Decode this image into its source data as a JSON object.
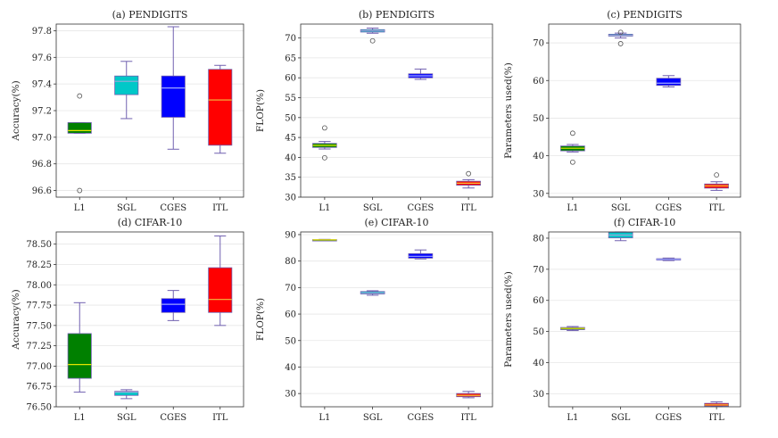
{
  "chart_data": [
    {
      "type": "box",
      "title": "(a) PENDIGITS",
      "ylabel": "Accuracy(%)",
      "ylim": [
        96.55,
        97.85
      ],
      "yticks": [
        "96.6",
        "96.8",
        "97.0",
        "97.2",
        "97.4",
        "97.6",
        "97.8"
      ],
      "categories": [
        "L1",
        "SGL",
        "CGES",
        "ITL"
      ],
      "boxes": [
        {
          "name": "L1",
          "whislo": 97.03,
          "q1": 97.03,
          "med": 97.05,
          "q3": 97.11,
          "whishi": 97.11,
          "fliers": [
            97.31,
            96.6
          ]
        },
        {
          "name": "SGL",
          "whislo": 97.14,
          "q1": 97.32,
          "med": 97.42,
          "q3": 97.46,
          "whishi": 97.57,
          "fliers": []
        },
        {
          "name": "CGES",
          "whislo": 96.91,
          "q1": 97.15,
          "med": 97.37,
          "q3": 97.46,
          "whishi": 97.83,
          "fliers": []
        },
        {
          "name": "ITL",
          "whislo": 96.88,
          "q1": 96.94,
          "med": 97.28,
          "q3": 97.51,
          "whishi": 97.54,
          "fliers": []
        }
      ]
    },
    {
      "type": "box",
      "title": "(b) PENDIGITS",
      "ylabel": "FLOP(%)",
      "ylim": [
        30,
        73.5
      ],
      "yticks": [
        "30",
        "35",
        "40",
        "45",
        "50",
        "55",
        "60",
        "65",
        "70"
      ],
      "categories": [
        "L1",
        "SGL",
        "CGES",
        "ITL"
      ],
      "boxes": [
        {
          "name": "L1",
          "whislo": 42.1,
          "q1": 42.5,
          "med": 43.0,
          "q3": 43.5,
          "whishi": 44.0,
          "fliers": [
            47.4,
            39.9
          ]
        },
        {
          "name": "SGL",
          "whislo": 71.2,
          "q1": 71.5,
          "med": 71.8,
          "q3": 72.1,
          "whishi": 72.5,
          "fliers": [
            69.3
          ]
        },
        {
          "name": "CGES",
          "whislo": 59.6,
          "q1": 60.0,
          "med": 60.5,
          "q3": 61.0,
          "whishi": 62.2,
          "fliers": []
        },
        {
          "name": "ITL",
          "whislo": 32.3,
          "q1": 33.0,
          "med": 33.5,
          "q3": 34.0,
          "whishi": 34.4,
          "fliers": [
            35.9
          ]
        }
      ]
    },
    {
      "type": "box",
      "title": "(c) PENDIGITS",
      "ylabel": "Parameters used(%)",
      "ylim": [
        29,
        75
      ],
      "yticks": [
        "30",
        "40",
        "50",
        "60",
        "70"
      ],
      "categories": [
        "L1",
        "SGL",
        "CGES",
        "ITL"
      ],
      "boxes": [
        {
          "name": "L1",
          "whislo": 41.0,
          "q1": 41.3,
          "med": 42.0,
          "q3": 42.6,
          "whishi": 43.0,
          "fliers": [
            46.0,
            38.3
          ]
        },
        {
          "name": "SGL",
          "whislo": 71.3,
          "q1": 71.8,
          "med": 72.0,
          "q3": 72.3,
          "whishi": 72.6,
          "fliers": [
            72.8,
            69.8
          ]
        },
        {
          "name": "CGES",
          "whislo": 58.3,
          "q1": 58.7,
          "med": 59.3,
          "q3": 60.6,
          "whishi": 61.3,
          "fliers": []
        },
        {
          "name": "ITL",
          "whislo": 30.8,
          "q1": 31.4,
          "med": 32.0,
          "q3": 32.5,
          "whishi": 33.1,
          "fliers": [
            34.9
          ]
        }
      ]
    },
    {
      "type": "box",
      "title": "(d) CIFAR-10",
      "ylabel": "Accuracy(%)",
      "ylim": [
        76.5,
        78.65
      ],
      "yticks": [
        "76.50",
        "76.75",
        "77.00",
        "77.25",
        "77.50",
        "77.75",
        "78.00",
        "78.25",
        "78.50"
      ],
      "categories": [
        "L1",
        "SGL",
        "CGES",
        "ITL"
      ],
      "boxes": [
        {
          "name": "L1",
          "whislo": 76.68,
          "q1": 76.85,
          "med": 77.02,
          "q3": 77.4,
          "whishi": 77.78,
          "fliers": []
        },
        {
          "name": "SGL",
          "whislo": 76.6,
          "q1": 76.64,
          "med": 76.68,
          "q3": 76.69,
          "whishi": 76.71,
          "fliers": []
        },
        {
          "name": "CGES",
          "whislo": 77.56,
          "q1": 77.66,
          "med": 77.76,
          "q3": 77.83,
          "whishi": 77.93,
          "fliers": []
        },
        {
          "name": "ITL",
          "whislo": 77.5,
          "q1": 77.66,
          "med": 77.82,
          "q3": 78.21,
          "whishi": 78.6,
          "fliers": []
        }
      ]
    },
    {
      "type": "box",
      "title": "(e) CIFAR-10",
      "ylabel": "FLOP(%)",
      "ylim": [
        25,
        91
      ],
      "yticks": [
        "30",
        "40",
        "50",
        "60",
        "70",
        "80",
        "90"
      ],
      "categories": [
        "L1",
        "SGL",
        "CGES",
        "ITL"
      ],
      "boxes": [
        {
          "name": "L1",
          "whislo": 87.8,
          "q1": 87.9,
          "med": 88.0,
          "q3": 88.1,
          "whishi": 88.2,
          "fliers": []
        },
        {
          "name": "SGL",
          "whislo": 67.1,
          "q1": 67.6,
          "med": 68.0,
          "q3": 68.5,
          "whishi": 68.8,
          "fliers": []
        },
        {
          "name": "CGES",
          "whislo": 80.8,
          "q1": 81.1,
          "med": 81.8,
          "q3": 82.8,
          "whishi": 84.2,
          "fliers": []
        },
        {
          "name": "ITL",
          "whislo": 28.4,
          "q1": 28.8,
          "med": 29.3,
          "q3": 30.0,
          "whishi": 30.8,
          "fliers": []
        }
      ]
    },
    {
      "type": "box",
      "title": "(f) CIFAR-10",
      "ylabel": "Parameters used(%)",
      "ylim": [
        25.8,
        82
      ],
      "yticks": [
        "30",
        "40",
        "50",
        "60",
        "70",
        "80"
      ],
      "categories": [
        "L1",
        "SGL",
        "CGES",
        "ITL"
      ],
      "boxes": [
        {
          "name": "L1",
          "whislo": 50.3,
          "q1": 50.6,
          "med": 51.0,
          "q3": 51.3,
          "whishi": 51.6,
          "fliers": []
        },
        {
          "name": "SGL",
          "whislo": 79.2,
          "q1": 80.1,
          "med": 81.0,
          "q3": 81.9,
          "whishi": 82.0,
          "fliers": []
        },
        {
          "name": "CGES",
          "whislo": 72.8,
          "q1": 73.0,
          "med": 73.2,
          "q3": 73.4,
          "whishi": 73.6,
          "fliers": []
        },
        {
          "name": "ITL",
          "whislo": 25.9,
          "q1": 26.0,
          "med": 26.4,
          "q3": 26.9,
          "whishi": 27.4,
          "fliers": []
        }
      ]
    }
  ],
  "colors": {
    "L1": "#008000",
    "SGL": "#00c8c8",
    "CGES": "#0000ff",
    "ITL": "#ff0000",
    "median_L1": "#e6e600",
    "median_SGL": "#9aa8d8",
    "median_CGES": "#a0a8ff",
    "median_ITL": "#f0c040",
    "whisker": "#7060b0"
  }
}
